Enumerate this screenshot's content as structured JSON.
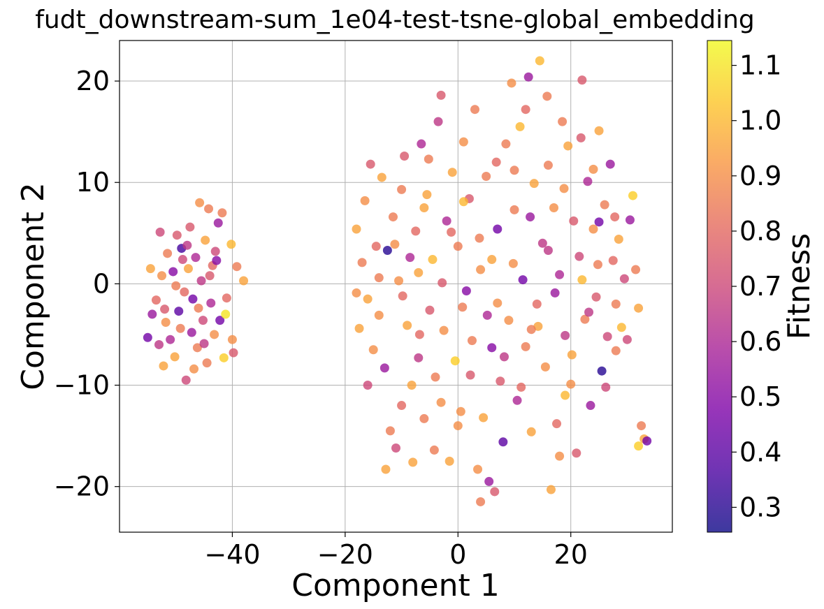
{
  "chart_data": {
    "type": "scatter",
    "title": "fudt_downstream-sum_1e04-test-tsne-global_embedding",
    "xlabel": "Component 1",
    "ylabel": "Component 2",
    "xlim": [
      -60,
      38
    ],
    "ylim": [
      -24.5,
      24
    ],
    "xticks": [
      -40,
      -20,
      0,
      20
    ],
    "xtick_labels": [
      "−40",
      "−20",
      "0",
      "20"
    ],
    "yticks": [
      -20,
      -10,
      0,
      10,
      20
    ],
    "ytick_labels": [
      "−20",
      "−10",
      "0",
      "10",
      "20"
    ],
    "grid": true,
    "colorbar": {
      "label": "Fitness",
      "colormap": "plasma",
      "range": [
        0.255,
        1.145
      ],
      "ticks": [
        0.3,
        0.4,
        0.5,
        0.6,
        0.7,
        0.8,
        0.9,
        1.0,
        1.1
      ],
      "tick_labels": [
        "0.3",
        "0.4",
        "0.5",
        "0.6",
        "0.7",
        "0.8",
        "0.9",
        "1.0",
        "1.1"
      ]
    },
    "series": [
      {
        "points": [
          [
            -55,
            -5.3,
            0.45
          ],
          [
            -54.2,
            -3.0,
            0.55
          ],
          [
            -53.5,
            -1.6,
            0.8
          ],
          [
            -52.8,
            5.1,
            0.7
          ],
          [
            -52.5,
            0.8,
            0.9
          ],
          [
            -52,
            -2.5,
            0.75
          ],
          [
            -51.5,
            3.0,
            0.85
          ],
          [
            -51,
            -5.5,
            0.6
          ],
          [
            -50.5,
            1.2,
            0.5
          ],
          [
            -50.2,
            -7.2,
            0.95
          ],
          [
            -49.8,
            4.8,
            0.75
          ],
          [
            -49.5,
            -2.7,
            0.4
          ],
          [
            -49,
            3.5,
            0.35
          ],
          [
            -48.5,
            -0.8,
            0.8
          ],
          [
            -48.2,
            -9.5,
            0.7
          ],
          [
            -47.8,
            1.5,
            0.95
          ],
          [
            -47.5,
            5.6,
            0.75
          ],
          [
            -47.2,
            -4.8,
            0.55
          ],
          [
            -47,
            -1.5,
            0.45
          ],
          [
            -46.5,
            2.6,
            0.6
          ],
          [
            -46.2,
            -6.3,
            0.85
          ],
          [
            -45.8,
            8.0,
            0.9
          ],
          [
            -45.5,
            0.3,
            0.65
          ],
          [
            -45.2,
            -3.6,
            0.7
          ],
          [
            -44.8,
            4.3,
            0.95
          ],
          [
            -44.5,
            -7.8,
            0.85
          ],
          [
            -44.2,
            7.4,
            0.85
          ],
          [
            -43.8,
            -1.9,
            0.6
          ],
          [
            -43.5,
            1.8,
            0.8
          ],
          [
            -43.2,
            -5.0,
            0.9
          ],
          [
            -42.5,
            6.0,
            0.55
          ],
          [
            -42.2,
            -3.6,
            0.45
          ],
          [
            -41.8,
            7.0,
            0.85
          ],
          [
            -41.5,
            -7.3,
            1.05
          ],
          [
            -41.2,
            -3.0,
            1.1
          ],
          [
            -40.2,
            3.9,
            1.0
          ],
          [
            -40.0,
            -5.5,
            0.9
          ],
          [
            -39.8,
            -6.8,
            0.75
          ],
          [
            -39.2,
            1.7,
            0.85
          ],
          [
            -38.0,
            0.3,
            0.95
          ],
          [
            -54.5,
            1.5,
            0.95
          ],
          [
            -53.0,
            -6.0,
            0.65
          ],
          [
            -51.8,
            -3.8,
            0.9
          ],
          [
            -50.0,
            -0.2,
            0.85
          ],
          [
            -48.8,
            2.4,
            0.7
          ],
          [
            -46.8,
            -8.4,
            0.9
          ],
          [
            -44.0,
            0.8,
            0.75
          ],
          [
            -43.0,
            3.2,
            0.7
          ],
          [
            -42.8,
            2.3,
            0.5
          ],
          [
            -41.0,
            -1.4,
            0.8
          ],
          [
            -52.2,
            -8.1,
            0.95
          ],
          [
            -49.2,
            -4.4,
            0.85
          ],
          [
            -45.0,
            -5.9,
            0.65
          ],
          [
            -48.0,
            3.8,
            0.65
          ],
          [
            -46.0,
            -2.4,
            0.85
          ],
          [
            -18,
            5.4,
            0.95
          ],
          [
            -17.5,
            -4.4,
            0.95
          ],
          [
            -17,
            2.1,
            0.85
          ],
          [
            -16.5,
            8.2,
            0.9
          ],
          [
            -16,
            -1.5,
            0.95
          ],
          [
            -15.5,
            11.8,
            0.75
          ],
          [
            -15,
            -6.5,
            0.9
          ],
          [
            -14.5,
            3.7,
            0.8
          ],
          [
            -14,
            -3.1,
            0.9
          ],
          [
            -13.5,
            10.5,
            0.95
          ],
          [
            -13,
            -8.3,
            0.55
          ],
          [
            -12.5,
            3.3,
            0.3
          ],
          [
            -12,
            -14.5,
            0.85
          ],
          [
            -11.5,
            6.6,
            0.85
          ],
          [
            -11,
            -16.2,
            0.7
          ],
          [
            -10.5,
            0.3,
            0.9
          ],
          [
            -10,
            -12.0,
            0.8
          ],
          [
            -9.5,
            12.6,
            0.75
          ],
          [
            -9,
            -4.1,
            0.95
          ],
          [
            -8.5,
            2.6,
            0.6
          ],
          [
            -8,
            -17.6,
            0.95
          ],
          [
            -7.5,
            5.2,
            0.8
          ],
          [
            -7,
            -7.3,
            0.65
          ],
          [
            -6.5,
            13.8,
            0.6
          ],
          [
            -6,
            -13.3,
            0.85
          ],
          [
            -5.5,
            8.8,
            0.95
          ],
          [
            -5,
            -2.6,
            0.75
          ],
          [
            -4.5,
            2.4,
            1.0
          ],
          [
            -4,
            -9.2,
            0.85
          ],
          [
            -3.5,
            16.0,
            0.65
          ],
          [
            -3,
            18.6,
            0.75
          ],
          [
            -2.5,
            -4.6,
            0.9
          ],
          [
            -2,
            6.2,
            0.6
          ],
          [
            -1.5,
            -17.5,
            0.95
          ],
          [
            -1,
            11.0,
            0.95
          ],
          [
            -0.5,
            -7.6,
            1.05
          ],
          [
            0,
            3.7,
            0.85
          ],
          [
            0.5,
            -12.6,
            0.9
          ],
          [
            1,
            14.0,
            0.9
          ],
          [
            1.5,
            -0.7,
            0.5
          ],
          [
            2,
            8.4,
            0.75
          ],
          [
            2.5,
            -5.6,
            0.85
          ],
          [
            3,
            17.2,
            0.85
          ],
          [
            3.5,
            -18.3,
            0.9
          ],
          [
            4,
            -21.5,
            0.85
          ],
          [
            4.5,
            -13.2,
            0.95
          ],
          [
            5,
            10.6,
            0.85
          ],
          [
            5.5,
            -19.5,
            0.55
          ],
          [
            6,
            2.4,
            0.95
          ],
          [
            6.5,
            -20.5,
            0.75
          ],
          [
            7,
            5.4,
            0.45
          ],
          [
            7.5,
            -9.6,
            0.75
          ],
          [
            8,
            -15.6,
            0.4
          ],
          [
            8.5,
            13.8,
            0.85
          ],
          [
            9,
            -3.6,
            0.9
          ],
          [
            9.5,
            19.8,
            0.9
          ],
          [
            10,
            7.3,
            0.85
          ],
          [
            10.5,
            -11.5,
            0.6
          ],
          [
            11,
            15.5,
            1.0
          ],
          [
            11.5,
            0.4,
            0.45
          ],
          [
            12,
            -6.2,
            0.85
          ],
          [
            12.5,
            20.4,
            0.55
          ],
          [
            13,
            -14.6,
            0.95
          ],
          [
            13.5,
            9.9,
            0.95
          ],
          [
            14,
            -2.0,
            0.8
          ],
          [
            14.5,
            22.0,
            1.0
          ],
          [
            15,
            4.0,
            0.65
          ],
          [
            15.5,
            -8.2,
            0.9
          ],
          [
            16,
            11.7,
            0.85
          ],
          [
            16.5,
            -20.3,
            0.95
          ],
          [
            17,
            7.5,
            0.9
          ],
          [
            17.5,
            -13.8,
            0.8
          ],
          [
            18,
            0.9,
            0.6
          ],
          [
            18.5,
            16.0,
            0.85
          ],
          [
            19,
            -5.1,
            0.65
          ],
          [
            19.5,
            13.6,
            0.95
          ],
          [
            20,
            -9.9,
            0.9
          ],
          [
            20.5,
            6.2,
            0.75
          ],
          [
            21,
            -16.7,
            0.75
          ],
          [
            21.5,
            2.7,
            0.7
          ],
          [
            22,
            20.1,
            0.75
          ],
          [
            22.5,
            -3.5,
            0.85
          ],
          [
            23,
            10.1,
            0.6
          ],
          [
            23.5,
            -12.0,
            0.55
          ],
          [
            24,
            5.4,
            0.9
          ],
          [
            24.5,
            -1.3,
            0.75
          ],
          [
            25,
            15.1,
            0.95
          ],
          [
            25.5,
            -8.6,
            0.3
          ],
          [
            26,
            7.8,
            0.85
          ],
          [
            26.5,
            -5.2,
            0.7
          ],
          [
            27,
            11.8,
            0.55
          ],
          [
            27.5,
            2.3,
            0.8
          ],
          [
            28,
            -2.0,
            0.85
          ],
          [
            28.5,
            4.4,
            0.95
          ],
          [
            29,
            -4.3,
            1.0
          ],
          [
            29.5,
            0.5,
            0.7
          ],
          [
            30,
            -5.5,
            0.7
          ],
          [
            30.5,
            6.3,
            0.55
          ],
          [
            31,
            8.7,
            1.05
          ],
          [
            31.5,
            1.4,
            0.85
          ],
          [
            32,
            -2.4,
            0.95
          ],
          [
            32.5,
            -14.0,
            0.85
          ],
          [
            33,
            -15.3,
            0.95
          ],
          [
            33.5,
            -15.5,
            0.45
          ],
          [
            32,
            -16.0,
            1.05
          ],
          [
            -16,
            -10.0,
            0.7
          ],
          [
            -14,
            0.6,
            0.85
          ],
          [
            -12.8,
            -18.3,
            0.95
          ],
          [
            -11.2,
            3.9,
            0.9
          ],
          [
            -9.8,
            -1.2,
            0.8
          ],
          [
            -8.2,
            -10.0,
            0.95
          ],
          [
            -6.8,
            -5.0,
            0.8
          ],
          [
            -5.2,
            12.3,
            0.85
          ],
          [
            -4.2,
            -16.4,
            0.85
          ],
          [
            -2.8,
            0.1,
            0.75
          ],
          [
            -1.2,
            5.1,
            0.8
          ],
          [
            0.8,
            -2.3,
            0.85
          ],
          [
            2.2,
            -9.0,
            0.75
          ],
          [
            3.8,
            4.5,
            0.85
          ],
          [
            5.2,
            -3.1,
            0.6
          ],
          [
            6.8,
            12.0,
            0.8
          ],
          [
            8.2,
            -7.2,
            0.65
          ],
          [
            9.8,
            2.0,
            0.9
          ],
          [
            11.2,
            -10.2,
            0.8
          ],
          [
            12.8,
            6.6,
            0.55
          ],
          [
            14.2,
            -4.2,
            0.95
          ],
          [
            15.8,
            18.5,
            0.85
          ],
          [
            17.2,
            -0.9,
            0.55
          ],
          [
            18.8,
            9.4,
            0.9
          ],
          [
            20.2,
            -7.0,
            0.95
          ],
          [
            21.8,
            14.4,
            0.75
          ],
          [
            23.2,
            -2.8,
            0.65
          ],
          [
            24.8,
            1.9,
            0.85
          ],
          [
            26.2,
            -10.2,
            0.7
          ],
          [
            27.8,
            6.6,
            0.8
          ],
          [
            -10,
            9.3,
            0.85
          ],
          [
            -7,
            1.1,
            0.95
          ],
          [
            -3,
            -11.7,
            0.9
          ],
          [
            1,
            8.1,
            1.0
          ],
          [
            4,
            1.4,
            0.9
          ],
          [
            7,
            -1.9,
            0.9
          ],
          [
            10,
            11.2,
            0.85
          ],
          [
            13,
            -4.5,
            0.85
          ],
          [
            16,
            3.3,
            0.65
          ],
          [
            19,
            -11.0,
            1.0
          ],
          [
            22,
            0.4,
            1.0
          ],
          [
            25,
            6.1,
            0.45
          ],
          [
            28,
            -6.6,
            0.85
          ],
          [
            -18,
            -0.9,
            0.9
          ],
          [
            -6,
            7.5,
            0.95
          ],
          [
            0,
            -14.0,
            0.9
          ],
          [
            6,
            -6.3,
            0.5
          ],
          [
            12,
            17.2,
            0.8
          ],
          [
            18,
            -17.0,
            0.9
          ],
          [
            24,
            11.3,
            0.9
          ]
        ]
      }
    ]
  }
}
